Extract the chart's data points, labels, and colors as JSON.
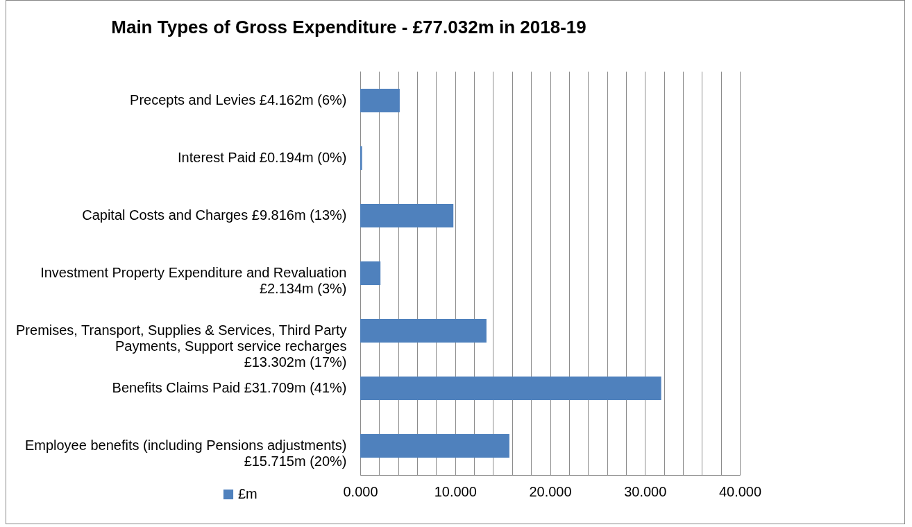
{
  "chart_data": {
    "type": "bar",
    "orientation": "horizontal",
    "title": "Main Types of Gross Expenditure - £77.032m in 2018-19",
    "categories": [
      "Precepts and Levies £4.162m  (6%)",
      "Interest Paid  £0.194m  (0%)",
      "Capital Costs and Charges £9.816m  (13%)",
      "Investment Property Expenditure and Revaluation £2.134m (3%)",
      "Premises, Transport, Supplies & Services, Third Party Payments, Support service recharges £13.302m (17%)",
      "Benefits Claims Paid £31.709m (41%)",
      "Employee benefits (including Pensions adjustments) £15.715m  (20%)"
    ],
    "series": [
      {
        "name": "£m",
        "color": "#4f81bd",
        "values": [
          4.162,
          0.194,
          9.816,
          2.134,
          13.302,
          31.709,
          15.715
        ]
      }
    ],
    "xlim": [
      0,
      40
    ],
    "xticks": [
      {
        "value": 0,
        "label": "0.000"
      },
      {
        "value": 2,
        "label": null
      },
      {
        "value": 4,
        "label": null
      },
      {
        "value": 6,
        "label": null
      },
      {
        "value": 8,
        "label": null
      },
      {
        "value": 10,
        "label": "10.000"
      },
      {
        "value": 12,
        "label": null
      },
      {
        "value": 14,
        "label": null
      },
      {
        "value": 16,
        "label": null
      },
      {
        "value": 18,
        "label": null
      },
      {
        "value": 20,
        "label": "20.000"
      },
      {
        "value": 22,
        "label": null
      },
      {
        "value": 24,
        "label": null
      },
      {
        "value": 26,
        "label": null
      },
      {
        "value": 28,
        "label": null
      },
      {
        "value": 30,
        "label": "30.000"
      },
      {
        "value": 32,
        "label": null
      },
      {
        "value": 34,
        "label": null
      },
      {
        "value": 36,
        "label": null
      },
      {
        "value": 38,
        "label": null
      },
      {
        "value": 40,
        "label": "40.000"
      }
    ],
    "grid": true,
    "legend": "bottom"
  }
}
